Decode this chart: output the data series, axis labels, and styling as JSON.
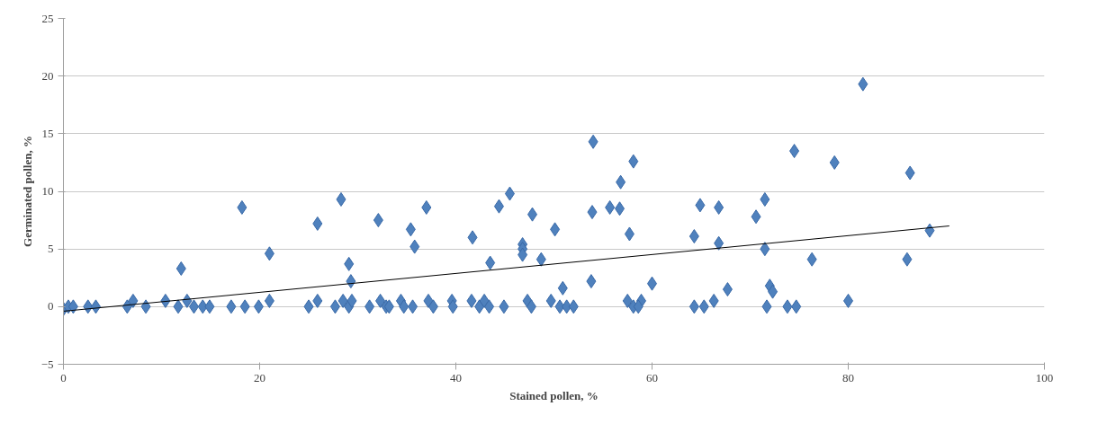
{
  "chart_data": {
    "type": "scatter",
    "xlabel": "Stained pollen, %",
    "ylabel": "Germinated pollen, %",
    "xlim": [
      0,
      100
    ],
    "xticks": [
      0,
      20,
      40,
      60,
      80,
      100
    ],
    "ylim": [
      -5,
      25
    ],
    "yticks": [
      -5,
      0,
      5,
      10,
      15,
      20,
      25
    ],
    "grid": "y",
    "series": [
      {
        "marker": "diamond",
        "color": "#4f81bd",
        "x": [
          0,
          0.5,
          1,
          2.5,
          3.3,
          6.5,
          7.1,
          8.4,
          10.4,
          12.0,
          11.7,
          12.6,
          13.3,
          14.2,
          14.9,
          17.1,
          18.2,
          18.5,
          19.9,
          21.0,
          21.0,
          25.0,
          25.9,
          25.9,
          27.7,
          28.3,
          28.5,
          29.1,
          29.1,
          29.3,
          29.4,
          31.2,
          32.1,
          32.3,
          32.9,
          33.2,
          34.4,
          34.7,
          35.4,
          35.6,
          35.8,
          37.0,
          37.2,
          37.7,
          39.6,
          39.7,
          41.7,
          41.6,
          42.4,
          42.9,
          43.4,
          43.5,
          44.4,
          44.9,
          45.5,
          46.8,
          46.8,
          46.8,
          47.3,
          47.7,
          47.8,
          48.7,
          49.7,
          50.1,
          50.9,
          50.6,
          51.3,
          52.0,
          53.8,
          53.9,
          54.0,
          55.7,
          56.7,
          56.8,
          57.5,
          58.1,
          57.7,
          58.1,
          58.9,
          58.6,
          60.0,
          64.3,
          64.3,
          64.9,
          65.3,
          66.3,
          66.8,
          66.8,
          67.7,
          70.6,
          71.5,
          71.5,
          72.0,
          72.3,
          71.7,
          73.8,
          74.7,
          74.5,
          76.3,
          78.6,
          80.0,
          81.5,
          86.0,
          86.3,
          88.3
        ],
        "values": [
          -0.2,
          0,
          0,
          0,
          0,
          0,
          0.5,
          0,
          0.5,
          3.3,
          0,
          0.5,
          0,
          0,
          0,
          0,
          8.6,
          0,
          0,
          0.5,
          4.6,
          0,
          0.5,
          7.2,
          0,
          9.3,
          0.5,
          0,
          3.7,
          2.2,
          0.5,
          0,
          7.5,
          0.5,
          0,
          0,
          0.5,
          0,
          6.7,
          0,
          5.2,
          8.6,
          0.5,
          0,
          0.5,
          0,
          6.0,
          0.5,
          0,
          0.5,
          0,
          3.8,
          8.7,
          0,
          9.8,
          5.4,
          5.0,
          4.5,
          0.5,
          0,
          8.0,
          4.1,
          0.5,
          6.7,
          1.6,
          0,
          0,
          0,
          2.2,
          8.2,
          14.3,
          8.6,
          8.5,
          10.8,
          0.5,
          0,
          6.3,
          12.6,
          0.5,
          0,
          2.0,
          0,
          6.1,
          8.8,
          0,
          0.5,
          8.6,
          5.5,
          1.5,
          7.8,
          9.3,
          5.0,
          1.8,
          1.3,
          0,
          0,
          0,
          13.5,
          4.1,
          12.5,
          0.5,
          19.3,
          4.1,
          11.6,
          6.6
        ]
      },
      {
        "type": "line",
        "color": "#000000",
        "x": [
          0,
          90.3
        ],
        "values": [
          -0.4,
          7.0
        ]
      }
    ]
  }
}
